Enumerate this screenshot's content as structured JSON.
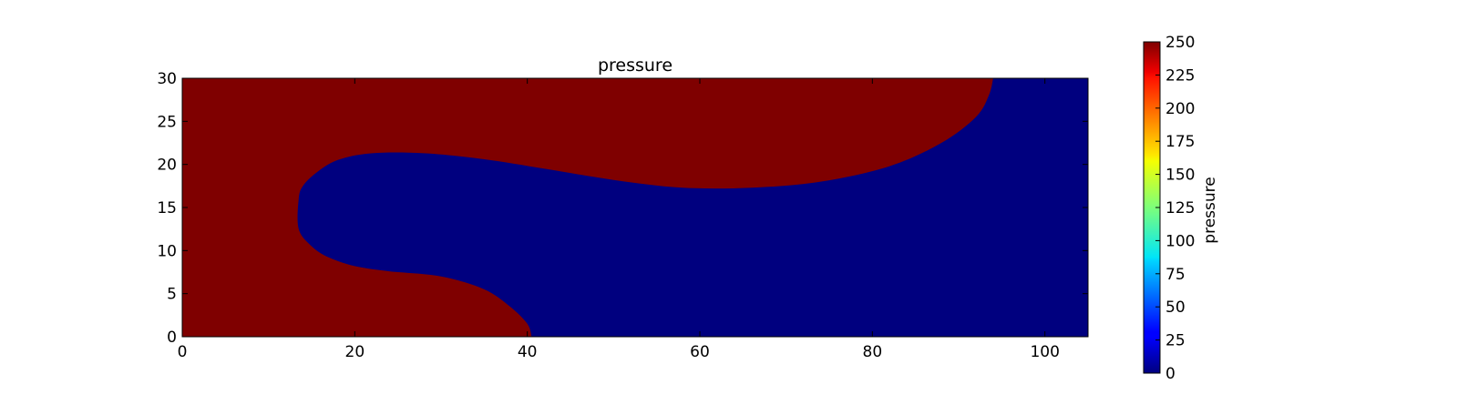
{
  "chart_data": {
    "type": "heatmap",
    "title": "pressure",
    "xlabel": "",
    "ylabel": "",
    "xlim": [
      0,
      105
    ],
    "ylim": [
      0,
      30
    ],
    "x_ticks": [
      0,
      20,
      40,
      60,
      80,
      100
    ],
    "y_ticks": [
      0,
      5,
      10,
      15,
      20,
      25,
      30
    ],
    "grid": false,
    "colormap": "jet",
    "colorbar": {
      "label": "pressure",
      "range": [
        0,
        250
      ],
      "ticks": [
        0,
        25,
        50,
        75,
        100,
        125,
        150,
        175,
        200,
        225,
        250
      ]
    },
    "background_value": 0,
    "regions": [
      {
        "value": 250,
        "description_points": [
          [
            0,
            0
          ],
          [
            40.5,
            0
          ],
          [
            40,
            1.5
          ],
          [
            38,
            3.5
          ],
          [
            35,
            5.5
          ],
          [
            30,
            7
          ],
          [
            24,
            7.6
          ],
          [
            20,
            8.2
          ],
          [
            17,
            9.2
          ],
          [
            15,
            10.5
          ],
          [
            13.5,
            12.5
          ],
          [
            13.5,
            16
          ],
          [
            14,
            17.5
          ],
          [
            15.5,
            19
          ],
          [
            18,
            20.5
          ],
          [
            22,
            21.3
          ],
          [
            28,
            21.3
          ],
          [
            35,
            20.6
          ],
          [
            42,
            19.5
          ],
          [
            50,
            18.2
          ],
          [
            58,
            17.3
          ],
          [
            66,
            17.3
          ],
          [
            74,
            18
          ],
          [
            82,
            19.8
          ],
          [
            88,
            22.5
          ],
          [
            92,
            25.5
          ],
          [
            93.5,
            28
          ],
          [
            94,
            30
          ],
          [
            0,
            30
          ]
        ]
      }
    ]
  }
}
